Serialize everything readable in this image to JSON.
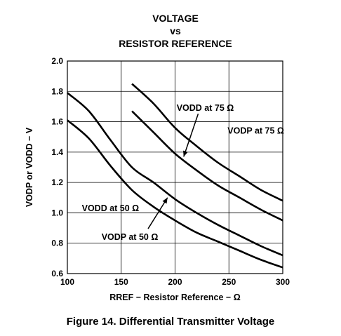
{
  "chart_data": {
    "type": "line",
    "title": [
      "VOLTAGE",
      "vs",
      "RESISTOR REFERENCE"
    ],
    "xlabel": "RREF − Resistor Reference − Ω",
    "ylabel": "VODP or VODD − V",
    "xlim": [
      100,
      300
    ],
    "ylim": [
      0.6,
      2.0
    ],
    "x_ticks": [
      "100",
      "150",
      "200",
      "250",
      "300"
    ],
    "y_ticks": [
      "0.6",
      "0.8",
      "1.0",
      "1.2",
      "1.4",
      "1.6",
      "1.8",
      "2.0"
    ],
    "grid": true,
    "series": [
      {
        "name": "VODD at 50 Ω",
        "x": [
          100,
          120,
          140,
          160,
          180,
          200,
          220,
          240,
          260,
          280,
          300
        ],
        "y": [
          1.79,
          1.67,
          1.48,
          1.3,
          1.2,
          1.09,
          1.0,
          0.92,
          0.85,
          0.78,
          0.72
        ]
      },
      {
        "name": "VODP at 50 Ω",
        "x": [
          100,
          120,
          140,
          160,
          180,
          200,
          220,
          240,
          260,
          280,
          300
        ],
        "y": [
          1.61,
          1.49,
          1.31,
          1.15,
          1.04,
          0.95,
          0.87,
          0.81,
          0.75,
          0.69,
          0.64
        ]
      },
      {
        "name": "VODD at 75 Ω",
        "x": [
          160,
          180,
          200,
          220,
          240,
          260,
          280,
          300
        ],
        "y": [
          1.85,
          1.72,
          1.56,
          1.44,
          1.33,
          1.24,
          1.15,
          1.08
        ]
      },
      {
        "name": "VODP at 75 Ω",
        "x": [
          160,
          180,
          200,
          220,
          240,
          260,
          280,
          300
        ],
        "y": [
          1.67,
          1.53,
          1.39,
          1.28,
          1.18,
          1.1,
          1.02,
          0.95
        ]
      }
    ],
    "annotations": [
      {
        "text": "VODD at 75 Ω",
        "x": 228,
        "y": 1.69,
        "arrow_to_x": 208,
        "arrow_to_y": 1.37
      },
      {
        "text": "VODP at 75 Ω",
        "x": 275,
        "y": 1.54
      },
      {
        "text": "VODD at 50 Ω",
        "x": 140,
        "y": 1.03
      },
      {
        "text": "VODP at 50 Ω",
        "x": 158,
        "y": 0.84,
        "arrow_to_x": 193,
        "arrow_to_y": 1.1
      }
    ]
  },
  "caption": "Figure 14. Differential Transmitter Voltage"
}
